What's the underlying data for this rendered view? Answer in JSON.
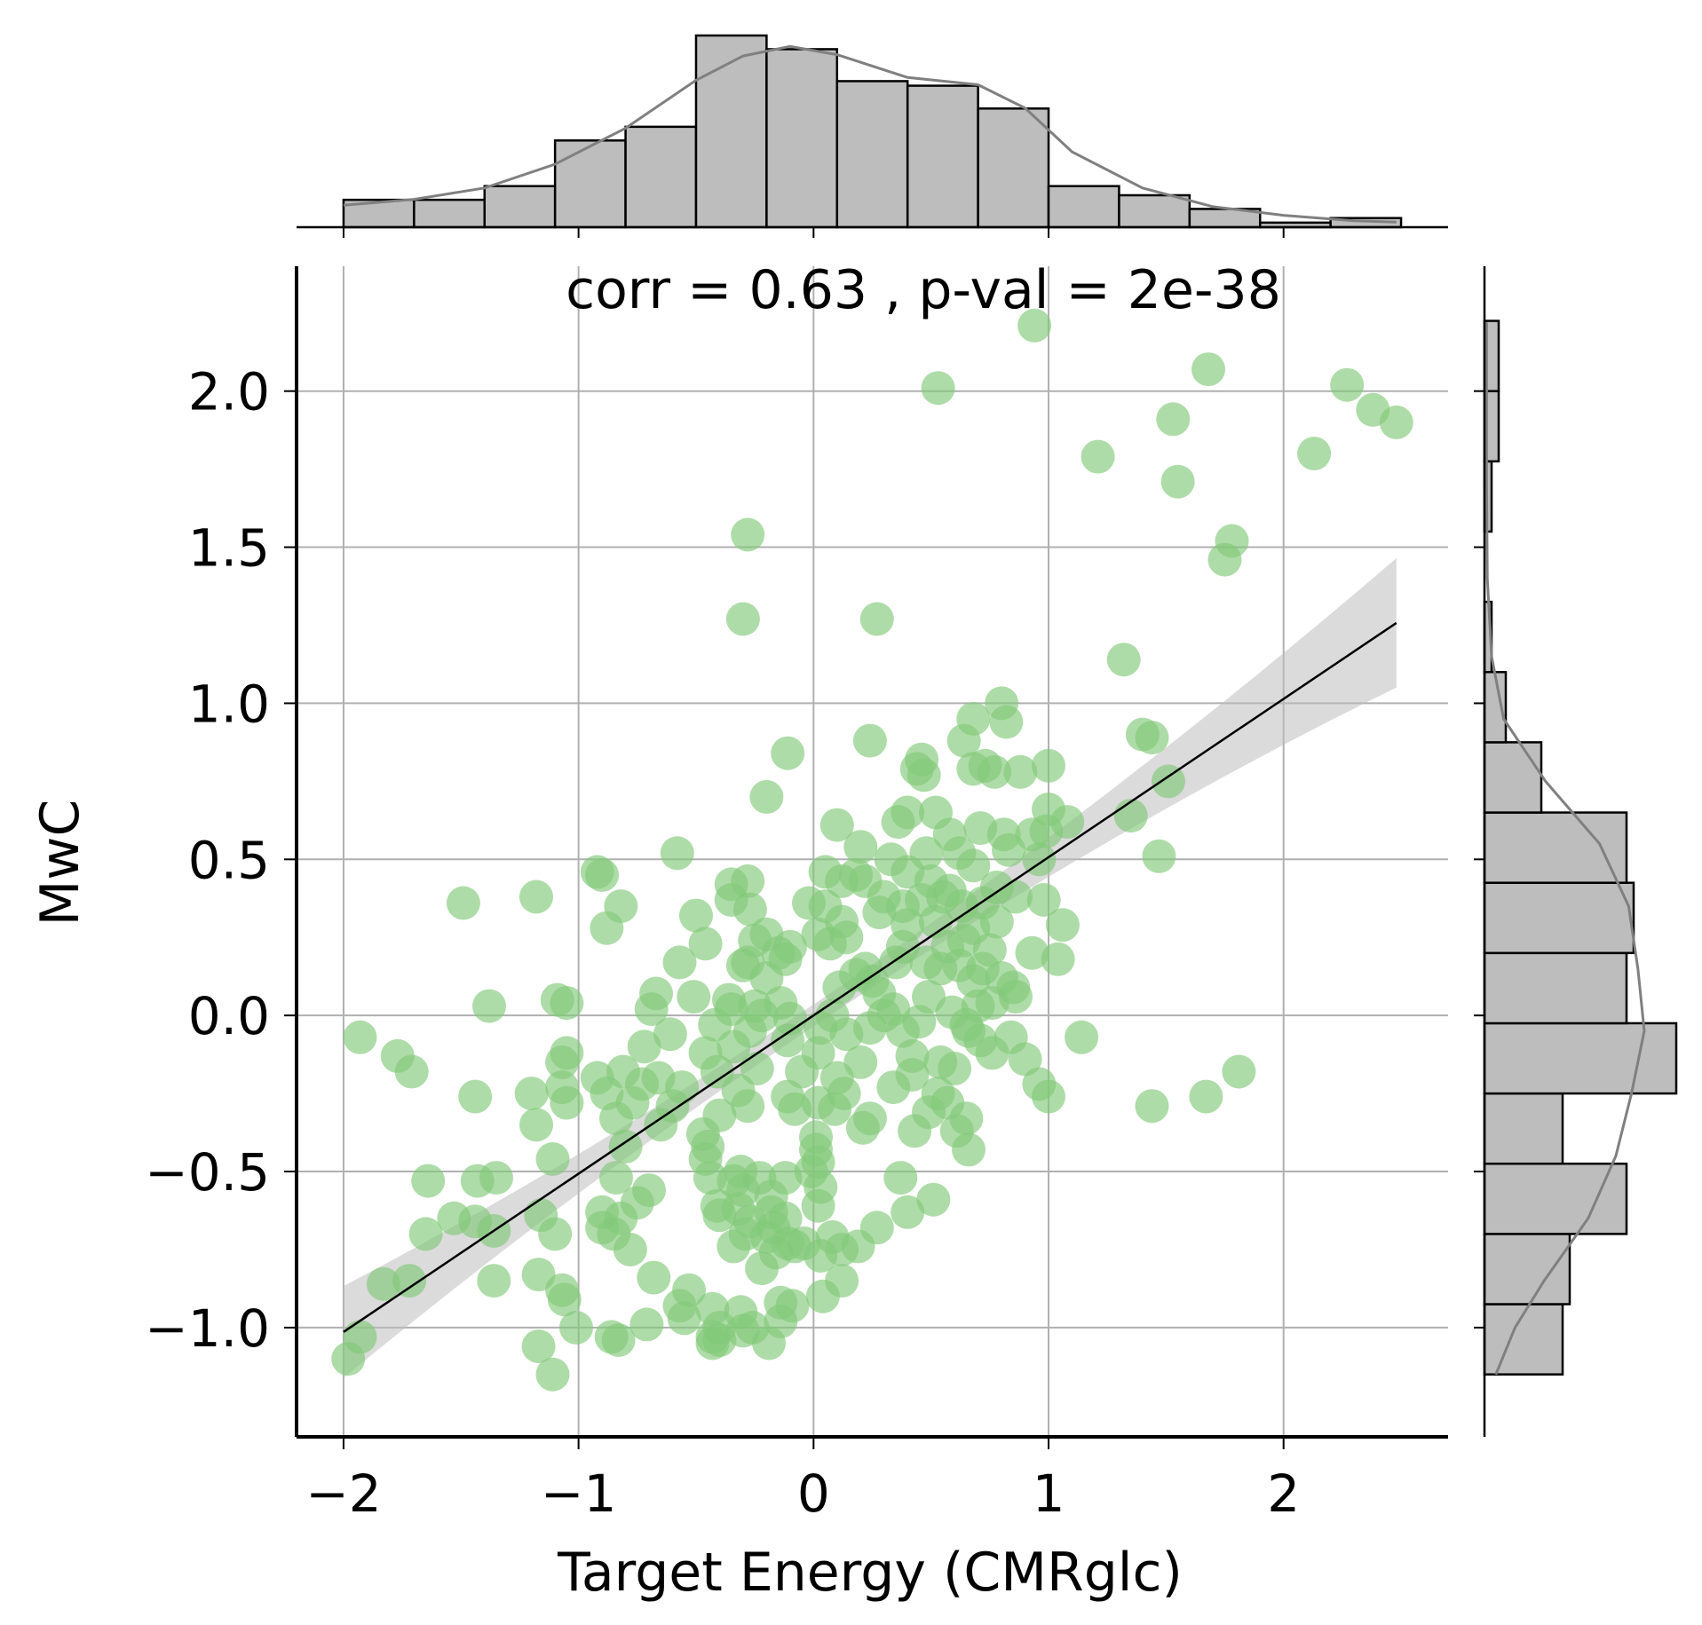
{
  "chart_data": {
    "type": "scatter",
    "xlabel": "Target Energy (CMRglc)",
    "ylabel": "MwC",
    "annotation": "corr = 0.63 , p-val = 2e-38",
    "xlim": [
      -2.2,
      2.7
    ],
    "ylim": [
      -1.35,
      2.4
    ],
    "x_ticks": [
      -2,
      -1,
      0,
      1,
      2
    ],
    "x_tick_labels": [
      "−2",
      "−1",
      "0",
      "1",
      "2"
    ],
    "y_ticks": [
      -1.0,
      -0.5,
      0.0,
      0.5,
      1.0,
      1.5,
      2.0
    ],
    "y_tick_labels": [
      "−1.0",
      "−0.5",
      "0.0",
      "0.5",
      "1.0",
      "1.5",
      "2.0"
    ],
    "grid": true,
    "colors": {
      "points": "#82ca7a",
      "regression_line": "#000000",
      "ci_band": "#bdbdbd",
      "histogram": "#bdbdbd",
      "kde": "#808080"
    },
    "regression": {
      "slope": 0.507,
      "intercept": 0.0,
      "x_range": [
        -2.0,
        2.48
      ]
    },
    "points": [
      [
        0.94,
        2.21
      ],
      [
        0.53,
        2.01
      ],
      [
        1.68,
        2.07
      ],
      [
        2.27,
        2.02
      ],
      [
        2.38,
        1.94
      ],
      [
        2.48,
        1.9
      ],
      [
        1.53,
        1.91
      ],
      [
        1.21,
        1.79
      ],
      [
        2.13,
        1.8
      ],
      [
        1.55,
        1.71
      ],
      [
        -0.28,
        1.54
      ],
      [
        1.78,
        1.52
      ],
      [
        1.75,
        1.46
      ],
      [
        -0.3,
        1.27
      ],
      [
        0.27,
        1.27
      ],
      [
        1.32,
        1.14
      ],
      [
        0.8,
        1.0
      ],
      [
        0.68,
        0.95
      ],
      [
        0.82,
        0.94
      ],
      [
        1.4,
        0.9
      ],
      [
        1.44,
        0.89
      ],
      [
        0.64,
        0.88
      ],
      [
        0.24,
        0.88
      ],
      [
        -0.11,
        0.84
      ],
      [
        0.46,
        0.82
      ],
      [
        0.44,
        0.79
      ],
      [
        0.47,
        0.77
      ],
      [
        0.68,
        0.79
      ],
      [
        0.73,
        0.8
      ],
      [
        0.77,
        0.78
      ],
      [
        0.88,
        0.78
      ],
      [
        1.0,
        0.8
      ],
      [
        1.51,
        0.75
      ],
      [
        -0.2,
        0.7
      ],
      [
        0.52,
        0.65
      ],
      [
        0.4,
        0.65
      ],
      [
        1.0,
        0.66
      ],
      [
        1.08,
        0.62
      ],
      [
        0.1,
        0.61
      ],
      [
        0.36,
        0.62
      ],
      [
        0.58,
        0.58
      ],
      [
        0.71,
        0.6
      ],
      [
        0.81,
        0.58
      ],
      [
        0.93,
        0.58
      ],
      [
        0.99,
        0.59
      ],
      [
        1.35,
        0.64
      ],
      [
        0.2,
        0.54
      ],
      [
        0.48,
        0.52
      ],
      [
        0.33,
        0.5
      ],
      [
        0.62,
        0.52
      ],
      [
        0.68,
        0.48
      ],
      [
        0.83,
        0.53
      ],
      [
        0.96,
        0.5
      ],
      [
        1.47,
        0.51
      ],
      [
        -0.58,
        0.52
      ],
      [
        -0.92,
        0.46
      ],
      [
        -0.9,
        0.45
      ],
      [
        0.05,
        0.46
      ],
      [
        0.12,
        0.43
      ],
      [
        0.22,
        0.43
      ],
      [
        0.18,
        0.45
      ],
      [
        0.4,
        0.46
      ],
      [
        0.5,
        0.43
      ],
      [
        0.58,
        0.4
      ],
      [
        0.78,
        0.41
      ],
      [
        -0.35,
        0.42
      ],
      [
        -0.28,
        0.43
      ],
      [
        -1.18,
        0.38
      ],
      [
        -0.27,
        0.34
      ],
      [
        -0.35,
        0.37
      ],
      [
        0.3,
        0.38
      ],
      [
        0.38,
        0.35
      ],
      [
        0.46,
        0.37
      ],
      [
        0.55,
        0.38
      ],
      [
        0.63,
        0.35
      ],
      [
        0.72,
        0.36
      ],
      [
        0.86,
        0.38
      ],
      [
        0.98,
        0.37
      ],
      [
        -1.49,
        0.36
      ],
      [
        -0.82,
        0.35
      ],
      [
        -0.5,
        0.32
      ],
      [
        -0.02,
        0.36
      ],
      [
        0.05,
        0.35
      ],
      [
        0.12,
        0.3
      ],
      [
        0.28,
        0.33
      ],
      [
        0.4,
        0.29
      ],
      [
        0.52,
        0.3
      ],
      [
        0.68,
        0.28
      ],
      [
        0.78,
        0.3
      ],
      [
        1.06,
        0.29
      ],
      [
        -0.88,
        0.28
      ],
      [
        -0.2,
        0.26
      ],
      [
        -0.1,
        0.22
      ],
      [
        0.02,
        0.26
      ],
      [
        0.07,
        0.23
      ],
      [
        0.14,
        0.25
      ],
      [
        0.38,
        0.22
      ],
      [
        0.57,
        0.22
      ],
      [
        0.64,
        0.24
      ],
      [
        0.75,
        0.21
      ],
      [
        0.93,
        0.2
      ],
      [
        -0.46,
        0.23
      ],
      [
        -0.25,
        0.24
      ],
      [
        -0.15,
        0.2
      ],
      [
        -0.12,
        0.18
      ],
      [
        -0.3,
        0.16
      ],
      [
        0.22,
        0.15
      ],
      [
        0.35,
        0.17
      ],
      [
        0.48,
        0.17
      ],
      [
        0.62,
        0.16
      ],
      [
        0.72,
        0.15
      ],
      [
        1.04,
        0.18
      ],
      [
        -0.57,
        0.17
      ],
      [
        -0.28,
        0.17
      ],
      [
        -0.2,
        0.12
      ],
      [
        0.18,
        0.13
      ],
      [
        0.25,
        0.11
      ],
      [
        0.54,
        0.15
      ],
      [
        0.68,
        0.11
      ],
      [
        0.8,
        0.12
      ],
      [
        -0.67,
        0.07
      ],
      [
        -0.51,
        0.06
      ],
      [
        -0.36,
        0.05
      ],
      [
        -0.25,
        0.03
      ],
      [
        -0.14,
        0.04
      ],
      [
        0.11,
        0.09
      ],
      [
        0.28,
        0.07
      ],
      [
        0.34,
        0.02
      ],
      [
        0.49,
        0.06
      ],
      [
        0.7,
        0.03
      ],
      [
        0.76,
        0.04
      ],
      [
        0.85,
        0.09
      ],
      [
        0.86,
        0.06
      ],
      [
        -0.69,
        0.02
      ],
      [
        -1.38,
        0.03
      ],
      [
        -1.09,
        0.05
      ],
      [
        -1.05,
        0.04
      ],
      [
        -0.35,
        0.02
      ],
      [
        -0.22,
        0.0
      ],
      [
        -0.1,
        -0.01
      ],
      [
        0.08,
        0.0
      ],
      [
        0.3,
        0.0
      ],
      [
        0.45,
        -0.02
      ],
      [
        0.59,
        0.01
      ],
      [
        0.65,
        -0.03
      ],
      [
        -0.42,
        -0.03
      ],
      [
        -0.61,
        -0.06
      ],
      [
        -0.27,
        -0.05
      ],
      [
        -0.11,
        -0.08
      ],
      [
        0.03,
        -0.04
      ],
      [
        0.14,
        -0.06
      ],
      [
        0.24,
        -0.04
      ],
      [
        0.38,
        -0.05
      ],
      [
        0.66,
        -0.05
      ],
      [
        0.71,
        -0.08
      ],
      [
        0.84,
        -0.07
      ],
      [
        1.14,
        -0.07
      ],
      [
        -1.93,
        -0.07
      ],
      [
        -1.05,
        -0.12
      ],
      [
        -1.77,
        -0.13
      ],
      [
        -0.72,
        -0.1
      ],
      [
        -0.34,
        -0.1
      ],
      [
        -0.46,
        -0.12
      ],
      [
        0.02,
        -0.12
      ],
      [
        0.2,
        -0.15
      ],
      [
        0.42,
        -0.13
      ],
      [
        0.54,
        -0.15
      ],
      [
        0.76,
        -0.12
      ],
      [
        0.9,
        -0.14
      ],
      [
        -1.07,
        -0.15
      ],
      [
        -1.71,
        -0.18
      ],
      [
        -0.92,
        -0.2
      ],
      [
        -0.81,
        -0.18
      ],
      [
        -0.66,
        -0.2
      ],
      [
        -0.41,
        -0.18
      ],
      [
        -0.24,
        -0.17
      ],
      [
        -0.05,
        -0.18
      ],
      [
        0.1,
        -0.2
      ],
      [
        0.42,
        -0.19
      ],
      [
        0.6,
        -0.17
      ],
      [
        1.81,
        -0.18
      ],
      [
        0.96,
        -0.22
      ],
      [
        -1.07,
        -0.23
      ],
      [
        -0.88,
        -0.25
      ],
      [
        -0.73,
        -0.22
      ],
      [
        -0.56,
        -0.23
      ],
      [
        -0.32,
        -0.24
      ],
      [
        -0.11,
        -0.26
      ],
      [
        0.13,
        -0.25
      ],
      [
        0.34,
        -0.23
      ],
      [
        0.53,
        -0.25
      ],
      [
        0.57,
        -0.28
      ],
      [
        0.02,
        -0.28
      ],
      [
        -1.2,
        -0.25
      ],
      [
        -1.05,
        -0.28
      ],
      [
        -1.44,
        -0.26
      ],
      [
        1.67,
        -0.26
      ],
      [
        1.44,
        -0.29
      ],
      [
        1.0,
        -0.26
      ],
      [
        -0.77,
        -0.28
      ],
      [
        -0.6,
        -0.29
      ],
      [
        -0.28,
        -0.29
      ],
      [
        -0.08,
        -0.3
      ],
      [
        0.09,
        -0.3
      ],
      [
        0.24,
        -0.33
      ],
      [
        0.49,
        -0.31
      ],
      [
        0.65,
        -0.33
      ],
      [
        -0.4,
        -0.32
      ],
      [
        -1.18,
        -0.35
      ],
      [
        -0.84,
        -0.33
      ],
      [
        -0.65,
        -0.35
      ],
      [
        0.21,
        -0.36
      ],
      [
        0.43,
        -0.37
      ],
      [
        0.61,
        -0.37
      ],
      [
        0.66,
        -0.43
      ],
      [
        -0.47,
        -0.38
      ],
      [
        -0.8,
        -0.42
      ],
      [
        0.01,
        -0.39
      ],
      [
        -0.45,
        -0.42
      ],
      [
        0.01,
        -0.43
      ],
      [
        -0.46,
        -0.46
      ],
      [
        -1.11,
        -0.46
      ],
      [
        -0.31,
        -0.5
      ],
      [
        0.02,
        -0.47
      ],
      [
        -0.44,
        -0.52
      ],
      [
        -0.34,
        -0.53
      ],
      [
        -0.23,
        -0.52
      ],
      [
        -0.12,
        -0.52
      ],
      [
        -1.64,
        -0.53
      ],
      [
        -1.35,
        -0.52
      ],
      [
        -1.43,
        -0.53
      ],
      [
        -0.84,
        -0.52
      ],
      [
        -0.7,
        -0.56
      ],
      [
        -0.01,
        -0.5
      ],
      [
        0.03,
        -0.55
      ],
      [
        0.37,
        -0.52
      ],
      [
        -0.3,
        -0.56
      ],
      [
        -0.18,
        -0.58
      ],
      [
        -0.75,
        -0.6
      ],
      [
        0.51,
        -0.59
      ],
      [
        -0.41,
        -0.61
      ],
      [
        -0.32,
        -0.62
      ],
      [
        -0.18,
        -0.63
      ],
      [
        0.02,
        -0.61
      ],
      [
        -0.9,
        -0.63
      ],
      [
        -0.82,
        -0.65
      ],
      [
        -1.53,
        -0.65
      ],
      [
        -1.44,
        -0.66
      ],
      [
        -1.16,
        -0.64
      ],
      [
        -0.4,
        -0.64
      ],
      [
        -0.27,
        -0.66
      ],
      [
        -0.17,
        -0.68
      ],
      [
        -0.12,
        -0.65
      ],
      [
        0.4,
        -0.63
      ],
      [
        -0.9,
        -0.68
      ],
      [
        -0.85,
        -0.7
      ],
      [
        -1.65,
        -0.7
      ],
      [
        -1.36,
        -0.69
      ],
      [
        -1.1,
        -0.7
      ],
      [
        -0.29,
        -0.7
      ],
      [
        -0.2,
        -0.71
      ],
      [
        -0.11,
        -0.73
      ],
      [
        0.08,
        -0.71
      ],
      [
        0.27,
        -0.68
      ],
      [
        -0.78,
        -0.75
      ],
      [
        -0.34,
        -0.74
      ],
      [
        -0.16,
        -0.76
      ],
      [
        0.03,
        -0.77
      ],
      [
        0.12,
        -0.75
      ],
      [
        0.19,
        -0.74
      ],
      [
        -0.04,
        -0.73
      ],
      [
        -0.08,
        -0.74
      ],
      [
        -1.83,
        -0.86
      ],
      [
        -1.72,
        -0.85
      ],
      [
        -1.17,
        -0.83
      ],
      [
        -0.68,
        -0.84
      ],
      [
        -0.22,
        -0.81
      ],
      [
        0.12,
        -0.85
      ],
      [
        -1.36,
        -0.85
      ],
      [
        -1.07,
        -0.88
      ],
      [
        -0.53,
        -0.88
      ],
      [
        -1.06,
        -0.91
      ],
      [
        -0.57,
        -0.93
      ],
      [
        -0.14,
        -0.92
      ],
      [
        -0.09,
        -0.93
      ],
      [
        0.04,
        -0.9
      ],
      [
        -0.43,
        -0.94
      ],
      [
        -0.31,
        -0.95
      ],
      [
        -0.55,
        -0.97
      ],
      [
        -0.14,
        -0.98
      ],
      [
        -1.93,
        -1.03
      ],
      [
        -1.01,
        -1.0
      ],
      [
        -0.71,
        -0.99
      ],
      [
        -0.4,
        -1.0
      ],
      [
        -0.3,
        -1.01
      ],
      [
        -0.26,
        -1.0
      ],
      [
        -0.86,
        -1.03
      ],
      [
        -0.83,
        -1.04
      ],
      [
        -0.43,
        -1.03
      ],
      [
        -0.4,
        -1.04
      ],
      [
        -1.98,
        -1.1
      ],
      [
        -1.17,
        -1.06
      ],
      [
        -0.43,
        -1.05
      ],
      [
        -0.19,
        -1.05
      ],
      [
        -1.11,
        -1.15
      ]
    ],
    "x_hist": {
      "edges": [
        -2.0,
        -1.7,
        -1.4,
        -1.1,
        -0.8,
        -0.5,
        -0.2,
        0.1,
        0.4,
        0.7,
        1.0,
        1.3,
        1.6,
        1.9,
        2.2,
        2.5
      ],
      "counts": [
        6,
        6,
        9,
        19,
        22,
        42,
        39,
        32,
        31,
        26,
        9,
        7,
        4,
        1,
        2
      ],
      "kde": [
        [
          -2.0,
          4.8
        ],
        [
          -1.7,
          6.1
        ],
        [
          -1.4,
          8.6
        ],
        [
          -1.1,
          13.8
        ],
        [
          -0.8,
          21.7
        ],
        [
          -0.5,
          32.2
        ],
        [
          -0.3,
          37.5
        ],
        [
          -0.1,
          39.6
        ],
        [
          0.1,
          37.8
        ],
        [
          0.4,
          32.8
        ],
        [
          0.7,
          31.2
        ],
        [
          0.9,
          26.1
        ],
        [
          1.1,
          16.5
        ],
        [
          1.4,
          8.6
        ],
        [
          1.7,
          4.5
        ],
        [
          2.0,
          2.6
        ],
        [
          2.3,
          1.4
        ],
        [
          2.48,
          1.1
        ]
      ]
    },
    "y_hist": {
      "edges": [
        -1.15,
        -0.925,
        -0.7,
        -0.475,
        -0.25,
        -0.025,
        0.2,
        0.425,
        0.65,
        0.875,
        1.1,
        1.325,
        1.55,
        1.775,
        2.0,
        2.225
      ],
      "counts": [
        11,
        12,
        20,
        11,
        27,
        20,
        21,
        20,
        8,
        3,
        1,
        0,
        1,
        2,
        2
      ],
      "kde": [
        [
          -1.15,
          1.6
        ],
        [
          -1.0,
          4.3
        ],
        [
          -0.85,
          8.4
        ],
        [
          -0.65,
          14.6
        ],
        [
          -0.45,
          18.5
        ],
        [
          -0.25,
          20.7
        ],
        [
          -0.05,
          22.5
        ],
        [
          0.15,
          21.6
        ],
        [
          0.35,
          20.3
        ],
        [
          0.55,
          16.2
        ],
        [
          0.75,
          8.6
        ],
        [
          0.95,
          2.7
        ],
        [
          1.15,
          1.0
        ],
        [
          1.4,
          0.4
        ],
        [
          1.7,
          0.3
        ],
        [
          2.0,
          0.3
        ],
        [
          2.22,
          0.3
        ]
      ]
    }
  }
}
